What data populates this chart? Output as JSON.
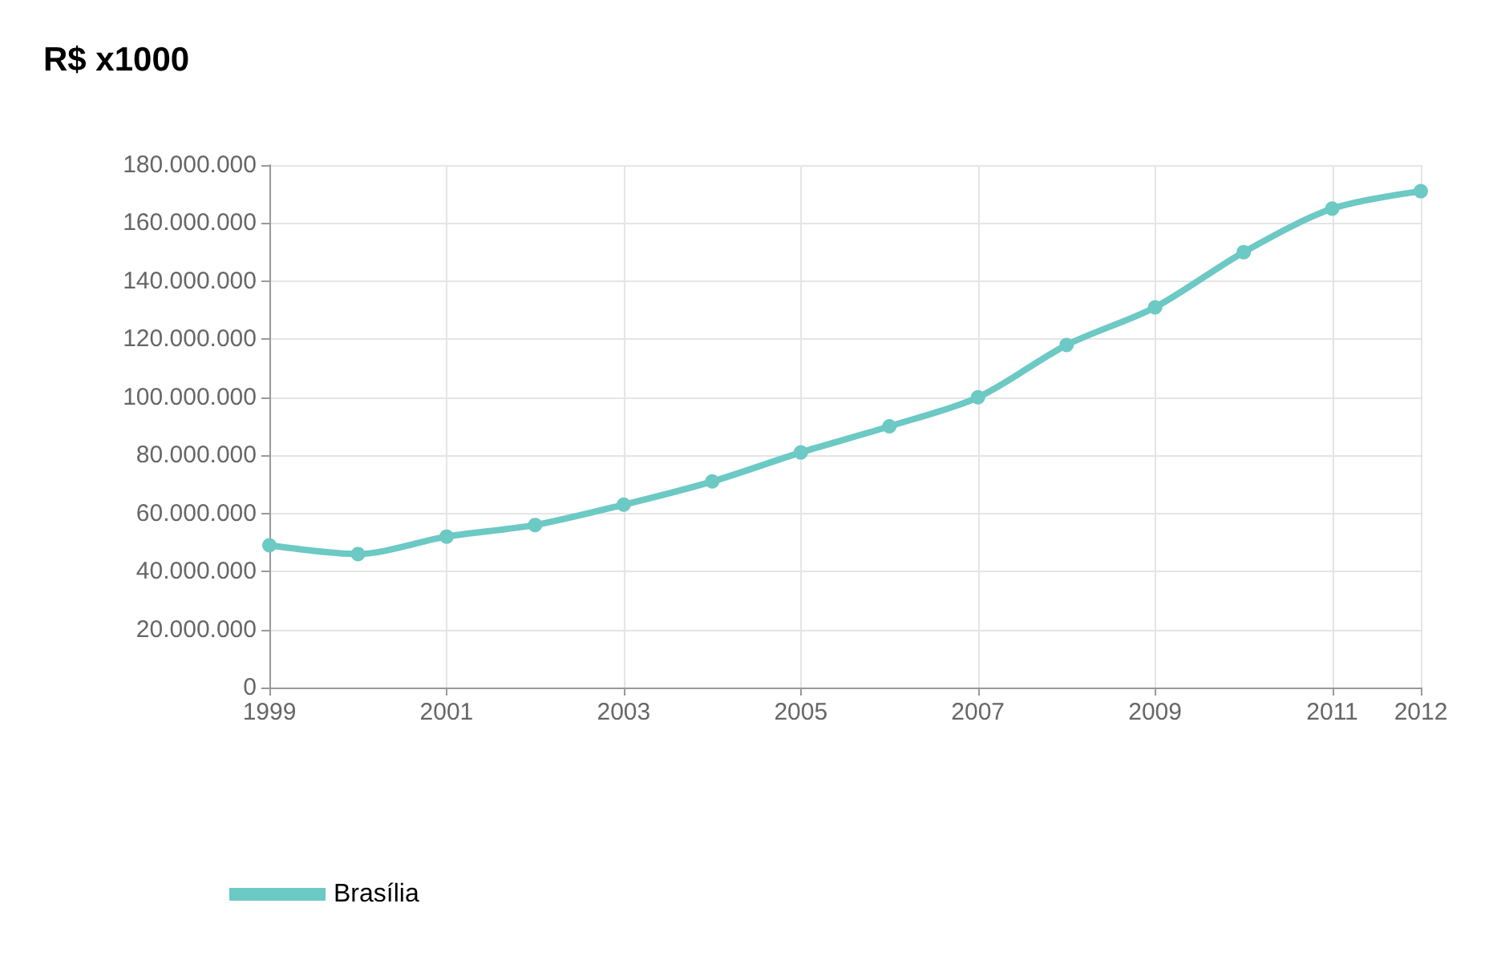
{
  "chart_data": {
    "type": "line",
    "title": "R$ x1000",
    "x": [
      1999,
      2000,
      2001,
      2002,
      2003,
      2004,
      2005,
      2006,
      2007,
      2008,
      2009,
      2010,
      2011,
      2012
    ],
    "series": [
      {
        "name": "Brasília",
        "color": "#6cc9c4",
        "values": [
          49000000,
          46000000,
          52000000,
          56000000,
          63000000,
          71000000,
          81000000,
          90000000,
          100000000,
          118000000,
          131000000,
          150000000,
          165000000,
          171000000
        ]
      }
    ],
    "xlim": [
      1999,
      2012
    ],
    "xticks": [
      1999,
      2001,
      2003,
      2005,
      2007,
      2009,
      2011,
      2012
    ],
    "ylim": [
      0,
      180000000
    ],
    "yticks": [
      0,
      {
        "value": 20000000,
        "label": "20.000.000"
      },
      {
        "value": 40000000,
        "label": "40.000.000"
      },
      {
        "value": 60000000,
        "label": "60.000.000"
      },
      {
        "value": 80000000,
        "label": "80.000.000"
      },
      {
        "value": 100000000,
        "label": "100.000.000"
      },
      {
        "value": 120000000,
        "label": "120.000.000"
      },
      {
        "value": 140000000,
        "label": "140.000.000"
      },
      {
        "value": 160000000,
        "label": "160.000.000"
      },
      {
        "value": 180000000,
        "label": "180.000.000"
      }
    ],
    "grid": true,
    "legend": "bottom left",
    "marker": "circle",
    "line_style": "solid"
  }
}
